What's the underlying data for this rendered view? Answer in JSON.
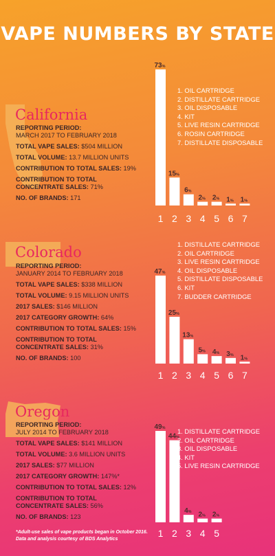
{
  "title": "VAPE NUMBERS BY STATE",
  "states": [
    {
      "name": "California",
      "info": [
        {
          "label": "REPORTING PERIOD:",
          "value": "MARCH 2017 TO FEBRUARY 2018",
          "block": true
        },
        {
          "label": "TOTAL VAPE SALES:",
          "value": " $504 MILLION"
        },
        {
          "label": "TOTAL VOLUME:",
          "value": " 13.7 MILLION UNITS"
        },
        {
          "label": "CONTRIBUTION TO TOTAL SALES:",
          "value": " 19%"
        },
        {
          "label": "CONTRIBUTION TO TOTAL CONCENTRATE SALES:",
          "value": " 71%"
        },
        {
          "label": "NO. OF BRANDS:",
          "value": " 171"
        }
      ],
      "legend": [
        "1. OIL CARTRIDGE",
        "2. DISTILLATE CARTRIDGE",
        "3. OIL DISPOSABLE",
        "4. KIT",
        "5. LIVE RESIN CARTRIDGE",
        "6. ROSIN CARTRIDGE",
        "7. DISTILLATE DISPOSABLE"
      ]
    },
    {
      "name": "Colorado",
      "info": [
        {
          "label": "REPORTING PERIOD:",
          "value": "JANUARY 2014 TO FEBRUARY 2018",
          "block": true
        },
        {
          "label": "TOTAL VAPE SALES:",
          "value": " $338 MILLION"
        },
        {
          "label": "TOTAL VOLUME:",
          "value": " 9.15 MILLION UNITS"
        },
        {
          "label": "2017 SALES:",
          "value": " $146 MILLION"
        },
        {
          "label": "2017 CATEGORY GROWTH:",
          "value": " 64%"
        },
        {
          "label": "CONTRIBUTION TO TOTAL SALES:",
          "value": " 15%"
        },
        {
          "label": "CONTRIBUTION TO TOTAL CONCENTRATE SALES:",
          "value": " 31%"
        },
        {
          "label": "NO. OF BRANDS:",
          "value": " 100"
        }
      ],
      "legend": [
        "1. DISTILLATE CARTRIDGE",
        "2. OIL CARTRIDGE",
        "3. LIVE RESIN CARTRIDGE",
        "4. OIL DISPOSABLE",
        "5. DISTILLATE DISPOSABLE",
        "6. KIT",
        "7. BUDDER CARTRIDGE"
      ]
    },
    {
      "name": "Oregon",
      "info": [
        {
          "label": "REPORTING PERIOD:",
          "value": "JULY 2014 TO FEBRUARY 2018",
          "block": true
        },
        {
          "label": "TOTAL VAPE SALES:",
          "value": " $141 MILLION"
        },
        {
          "label": "TOTAL VOLUME:",
          "value": " 3.6 MILLION UNITS"
        },
        {
          "label": "2017 SALES:",
          "value": " $77 MILLION"
        },
        {
          "label": "2017 CATEGORY GROWTH:",
          "value": " 147%*"
        },
        {
          "label": "CONTRIBUTION TO TOTAL SALES:",
          "value": " 12%"
        },
        {
          "label": "CONTRIBUTION TO TOTAL CONCENTRATE SALES:",
          "value": " 56%"
        },
        {
          "label": "NO. OF BRANDS:",
          "value": " 123"
        }
      ],
      "legend": [
        "1. DISTILLATE CARTRIDGE",
        "2. OIL CARTRIDGE",
        "3. OIL DISPOSABLE",
        "4. KIT",
        "5. LIVE RESIN CARTRIDGE"
      ]
    }
  ],
  "footnote": [
    "*Adult-use sales of vape products began in October 2016.",
    "Data and analysis courtesy of BDS Analytics"
  ],
  "colors": {
    "bar": "#ffffff",
    "value_label": "#4a2c2c",
    "state_name": "#e8275f",
    "state_shape": "#f5b35a"
  },
  "chart_data": [
    {
      "type": "bar",
      "title": "California",
      "categories": [
        "1",
        "2",
        "3",
        "4",
        "5",
        "6",
        "7"
      ],
      "values": [
        73,
        15,
        6,
        2,
        2,
        1,
        1
      ],
      "value_suffix": "%",
      "ylim": [
        0,
        73
      ]
    },
    {
      "type": "bar",
      "title": "Colorado",
      "categories": [
        "1",
        "2",
        "3",
        "4",
        "5",
        "6",
        "7"
      ],
      "values": [
        47,
        25,
        13,
        5,
        4,
        3,
        1
      ],
      "value_suffix": "%",
      "ylim": [
        0,
        47
      ]
    },
    {
      "type": "bar",
      "title": "Oregon",
      "categories": [
        "1",
        "2",
        "3",
        "4",
        "5"
      ],
      "values": [
        49,
        44,
        4,
        2,
        2
      ],
      "value_suffix": "%",
      "ylim": [
        0,
        49
      ]
    }
  ]
}
